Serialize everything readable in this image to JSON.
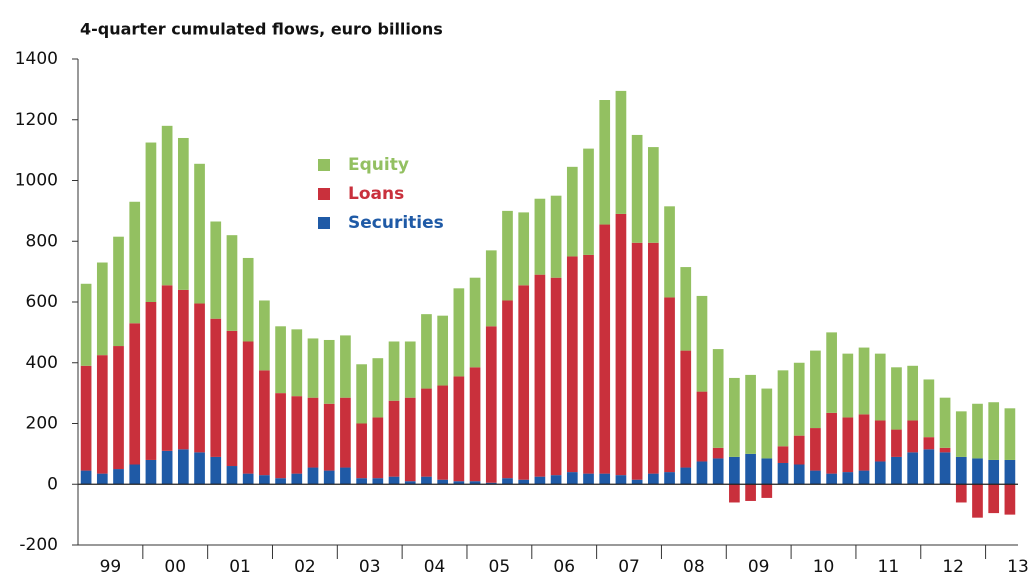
{
  "chart_data": {
    "type": "stacked_bar",
    "title": "4-quarter cumulated flows, euro billions",
    "categories": [
      null,
      "99",
      null,
      null,
      null,
      "00",
      null,
      null,
      null,
      "01",
      null,
      null,
      null,
      "02",
      null,
      null,
      null,
      "03",
      null,
      null,
      null,
      "04",
      null,
      null,
      null,
      "05",
      null,
      null,
      null,
      "06",
      null,
      null,
      null,
      "07",
      null,
      null,
      null,
      "08",
      null,
      null,
      null,
      "09",
      null,
      null,
      null,
      "10",
      null,
      null,
      null,
      "11",
      null,
      null,
      null,
      "12",
      null,
      null,
      null,
      "13"
    ],
    "series": [
      {
        "name": "Securities",
        "color": "#1f5aa6",
        "values": [
          45,
          35,
          50,
          65,
          80,
          110,
          115,
          105,
          90,
          60,
          35,
          30,
          20,
          35,
          55,
          45,
          55,
          20,
          20,
          25,
          10,
          25,
          15,
          10,
          10,
          5,
          20,
          15,
          25,
          30,
          40,
          35,
          35,
          30,
          15,
          35,
          40,
          55,
          75,
          85,
          90,
          100,
          85,
          70,
          65,
          45,
          35,
          40,
          45,
          75,
          90,
          105,
          115,
          105,
          90,
          85,
          80,
          80
        ]
      },
      {
        "name": "Loans",
        "color": "#c9303c",
        "values": [
          345,
          390,
          405,
          465,
          520,
          545,
          525,
          490,
          455,
          445,
          435,
          345,
          280,
          255,
          230,
          220,
          230,
          180,
          200,
          250,
          275,
          290,
          310,
          345,
          375,
          515,
          585,
          640,
          665,
          650,
          710,
          720,
          820,
          860,
          780,
          760,
          575,
          385,
          230,
          35,
          -60,
          -55,
          -45,
          55,
          95,
          140,
          200,
          180,
          185,
          135,
          90,
          105,
          40,
          15,
          -60,
          -110,
          -95,
          -100
        ]
      },
      {
        "name": "Equity",
        "color": "#93c061",
        "values": [
          270,
          305,
          360,
          400,
          525,
          525,
          500,
          460,
          320,
          315,
          275,
          230,
          220,
          220,
          195,
          210,
          205,
          195,
          195,
          195,
          185,
          245,
          230,
          290,
          295,
          250,
          295,
          240,
          250,
          270,
          295,
          350,
          410,
          405,
          355,
          315,
          300,
          275,
          315,
          325,
          260,
          260,
          230,
          250,
          240,
          255,
          265,
          210,
          220,
          220,
          205,
          180,
          190,
          165,
          150,
          180,
          190,
          170
        ]
      }
    ],
    "ylim": [
      -200,
      1400
    ],
    "yticks": [
      -200,
      0,
      200,
      400,
      600,
      800,
      1000,
      1200,
      1400
    ]
  }
}
